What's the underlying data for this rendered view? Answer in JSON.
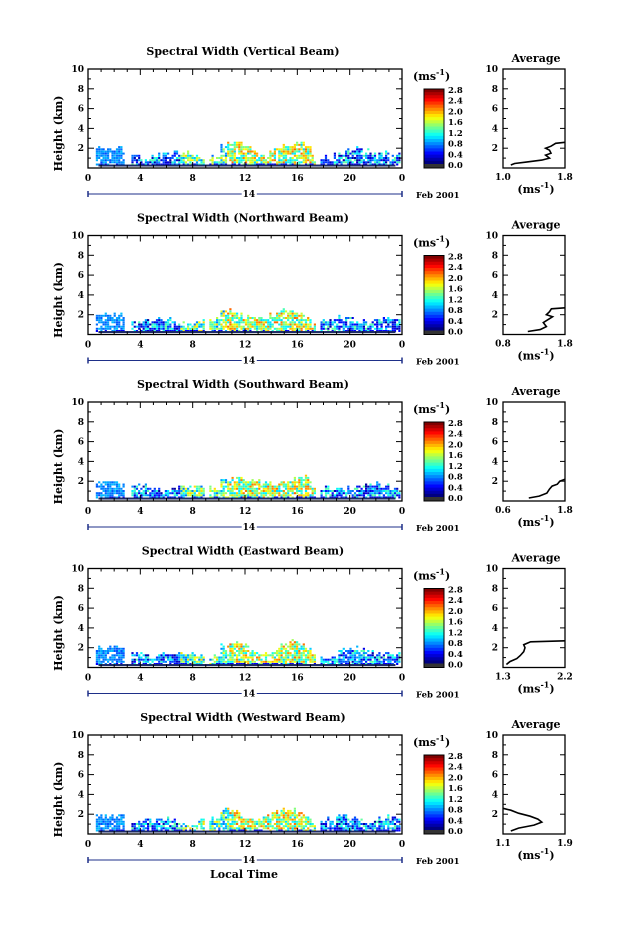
{
  "figure": {
    "xlabel": "Local Time",
    "date_label": "Feb 2001",
    "day_label": "14",
    "ylabel": "Height (km)",
    "unit": "(ms",
    "unit_exp": "-1",
    "unit_close": ")",
    "average_title": "Average",
    "average_xlabel": "(ms",
    "average_xlabel_exp": "-1",
    "average_xlabel_close": ")",
    "colorbar_ticks": [
      "2.8",
      "2.4",
      "2.0",
      "1.6",
      "1.2",
      "0.8",
      "0.4",
      "0.0"
    ]
  },
  "chart_data": [
    {
      "type": "heatmap",
      "title": "Spectral Width (Vertical Beam)",
      "xlim": [
        0,
        24
      ],
      "xticks": [
        "0",
        "4",
        "8",
        "12",
        "16",
        "20",
        "0"
      ],
      "ylim": [
        0,
        10
      ],
      "yticks": [
        "2",
        "4",
        "6",
        "8",
        "10"
      ],
      "colorbar": {
        "min": 0.0,
        "max": 2.8
      },
      "average": {
        "xlim": [
          1.0,
          1.8
        ],
        "xticks": [
          "1.0",
          "1.8"
        ],
        "ylim": [
          0,
          10
        ],
        "yticks": [
          "2",
          "4",
          "6",
          "8",
          "10"
        ],
        "profile": [
          [
            1.1,
            0.3
          ],
          [
            1.15,
            0.45
          ],
          [
            1.3,
            0.6
          ],
          [
            1.5,
            0.8
          ],
          [
            1.6,
            1.0
          ],
          [
            1.55,
            1.3
          ],
          [
            1.62,
            1.5
          ],
          [
            1.6,
            1.8
          ],
          [
            1.55,
            2.0
          ],
          [
            1.62,
            2.2
          ],
          [
            1.68,
            2.5
          ],
          [
            1.8,
            2.6
          ]
        ]
      }
    },
    {
      "type": "heatmap",
      "title": "Spectral Width (Northward Beam)",
      "xlim": [
        0,
        24
      ],
      "xticks": [
        "0",
        "4",
        "8",
        "12",
        "16",
        "20",
        "0"
      ],
      "ylim": [
        0,
        10
      ],
      "yticks": [
        "2",
        "4",
        "6",
        "8",
        "10"
      ],
      "colorbar": {
        "min": 0.0,
        "max": 2.8
      },
      "average": {
        "xlim": [
          0.8,
          1.8
        ],
        "xticks": [
          "0.8",
          "1.8"
        ],
        "ylim": [
          0,
          10
        ],
        "yticks": [
          "2",
          "4",
          "6",
          "8",
          "10"
        ],
        "profile": [
          [
            1.2,
            0.3
          ],
          [
            1.4,
            0.5
          ],
          [
            1.5,
            0.8
          ],
          [
            1.45,
            1.2
          ],
          [
            1.55,
            1.6
          ],
          [
            1.6,
            1.8
          ],
          [
            1.5,
            2.0
          ],
          [
            1.55,
            2.3
          ],
          [
            1.58,
            2.6
          ],
          [
            1.8,
            2.7
          ]
        ]
      }
    },
    {
      "type": "heatmap",
      "title": "Spectral Width (Southward Beam)",
      "xlim": [
        0,
        24
      ],
      "xticks": [
        "0",
        "4",
        "8",
        "12",
        "16",
        "20",
        "0"
      ],
      "ylim": [
        0,
        10
      ],
      "yticks": [
        "2",
        "4",
        "6",
        "8",
        "10"
      ],
      "colorbar": {
        "min": 0.0,
        "max": 2.8
      },
      "average": {
        "xlim": [
          0.6,
          1.8
        ],
        "xticks": [
          "0.6",
          "1.8"
        ],
        "ylim": [
          0,
          10
        ],
        "yticks": [
          "2",
          "4",
          "6",
          "8",
          "10"
        ],
        "profile": [
          [
            1.1,
            0.3
          ],
          [
            1.3,
            0.5
          ],
          [
            1.45,
            0.8
          ],
          [
            1.5,
            1.2
          ],
          [
            1.55,
            1.5
          ],
          [
            1.65,
            1.7
          ],
          [
            1.7,
            2.0
          ],
          [
            1.8,
            2.2
          ]
        ]
      }
    },
    {
      "type": "heatmap",
      "title": "Spectral Width (Eastward Beam)",
      "xlim": [
        0,
        24
      ],
      "xticks": [
        "0",
        "4",
        "8",
        "12",
        "16",
        "20",
        "0"
      ],
      "ylim": [
        0,
        10
      ],
      "yticks": [
        "2",
        "4",
        "6",
        "8",
        "10"
      ],
      "colorbar": {
        "min": 0.0,
        "max": 2.8
      },
      "average": {
        "xlim": [
          1.3,
          2.2
        ],
        "xticks": [
          "1.3",
          "2.2"
        ],
        "ylim": [
          0,
          10
        ],
        "yticks": [
          "2",
          "4",
          "6",
          "8",
          "10"
        ],
        "profile": [
          [
            1.35,
            0.3
          ],
          [
            1.4,
            0.6
          ],
          [
            1.5,
            0.9
          ],
          [
            1.55,
            1.2
          ],
          [
            1.6,
            1.6
          ],
          [
            1.62,
            2.0
          ],
          [
            1.6,
            2.3
          ],
          [
            1.7,
            2.6
          ],
          [
            2.2,
            2.7
          ]
        ]
      }
    },
    {
      "type": "heatmap",
      "title": "Spectral Width (Westward Beam)",
      "xlim": [
        0,
        24
      ],
      "xticks": [
        "0",
        "4",
        "8",
        "12",
        "16",
        "20",
        "0"
      ],
      "ylim": [
        0,
        10
      ],
      "yticks": [
        "2",
        "4",
        "6",
        "8",
        "10"
      ],
      "colorbar": {
        "min": 0.0,
        "max": 2.8
      },
      "average": {
        "xlim": [
          1.1,
          1.9
        ],
        "xticks": [
          "1.1",
          "1.9"
        ],
        "ylim": [
          0,
          10
        ],
        "yticks": [
          "2",
          "4",
          "6",
          "8",
          "10"
        ],
        "profile": [
          [
            1.2,
            0.3
          ],
          [
            1.3,
            0.6
          ],
          [
            1.5,
            0.9
          ],
          [
            1.6,
            1.2
          ],
          [
            1.55,
            1.5
          ],
          [
            1.45,
            1.8
          ],
          [
            1.3,
            2.1
          ],
          [
            1.2,
            2.4
          ],
          [
            1.1,
            2.6
          ]
        ]
      }
    }
  ]
}
